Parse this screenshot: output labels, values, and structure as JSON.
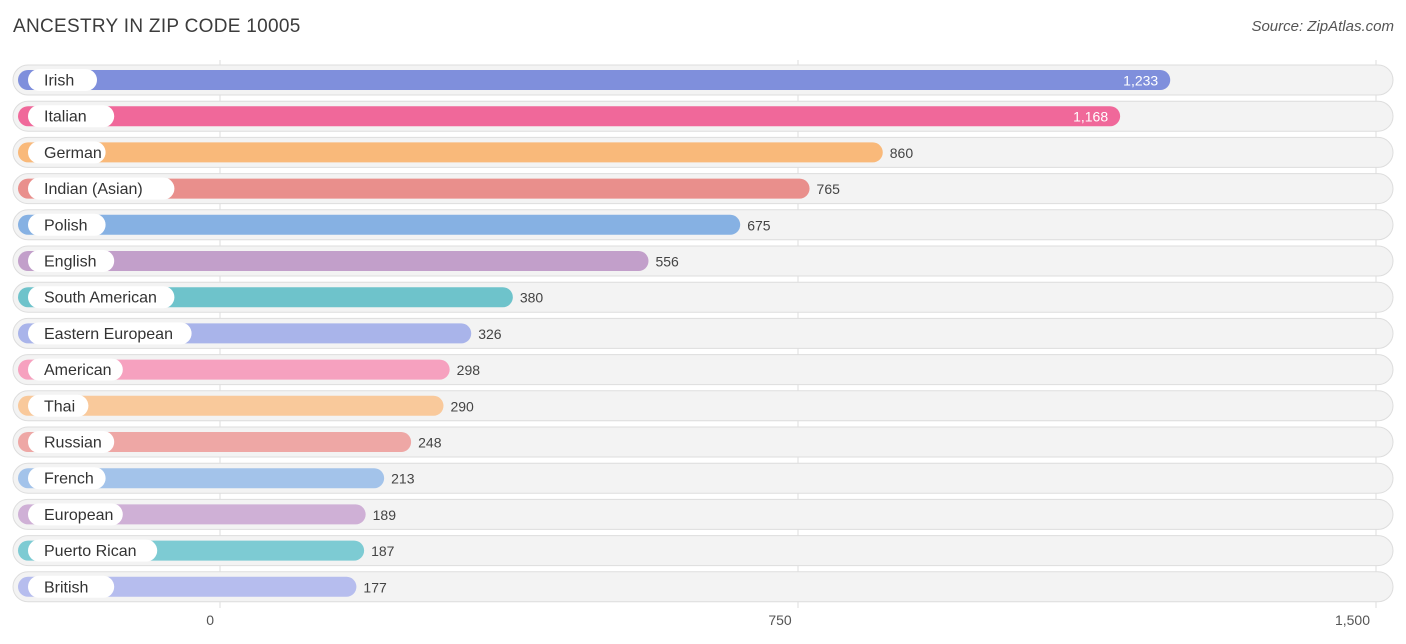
{
  "header": {
    "title": "ANCESTRY IN ZIP CODE 10005",
    "source": "Source: ZipAtlas.com"
  },
  "chart_data": {
    "type": "bar",
    "orientation": "horizontal",
    "title": "ANCESTRY IN ZIP CODE 10005",
    "xlim": [
      0,
      1500
    ],
    "ticks": [
      0,
      750,
      1500
    ],
    "tick_labels": [
      "0",
      "750",
      "1,500"
    ],
    "grid": true,
    "categories": [
      "Irish",
      "Italian",
      "German",
      "Indian (Asian)",
      "Polish",
      "English",
      "South American",
      "Eastern European",
      "American",
      "Thai",
      "Russian",
      "French",
      "European",
      "Puerto Rican",
      "British"
    ],
    "values": [
      1233,
      1168,
      860,
      765,
      675,
      556,
      380,
      326,
      298,
      290,
      248,
      213,
      189,
      187,
      177
    ],
    "value_labels": [
      "1,233",
      "1,168",
      "860",
      "765",
      "675",
      "556",
      "380",
      "326",
      "298",
      "290",
      "248",
      "213",
      "189",
      "187",
      "177"
    ],
    "colors": [
      "#7f8fdc",
      "#f0689a",
      "#f9b97a",
      "#e98f8c",
      "#86b1e3",
      "#c29fca",
      "#6ec3cb",
      "#a9b4ea",
      "#f6a1bf",
      "#f9c99b",
      "#eea7a5",
      "#a3c3ea",
      "#cfb0d6",
      "#7dcbd3",
      "#b6bdee"
    ]
  }
}
